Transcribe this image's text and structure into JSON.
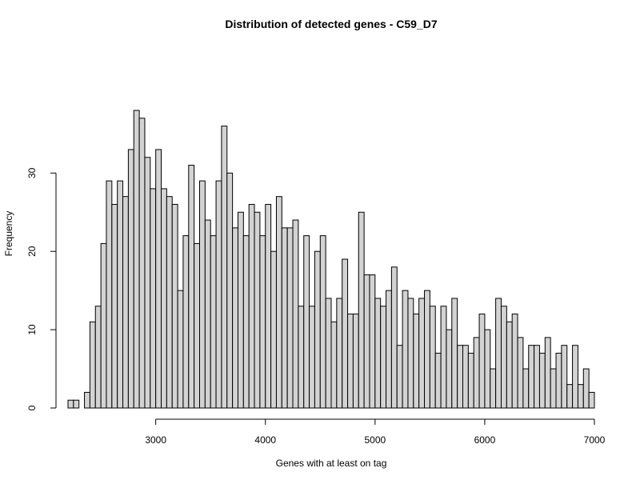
{
  "chart_data": {
    "type": "bar",
    "title": "Distribution of detected genes - C59_D7",
    "xlabel": "Genes with at least on tag",
    "ylabel": "Frequency",
    "bin_start": 2200,
    "bin_width": 50,
    "values": [
      1,
      1,
      0,
      2,
      11,
      13,
      21,
      29,
      26,
      29,
      27,
      33,
      38,
      37,
      32,
      28,
      33,
      28,
      27,
      26,
      15,
      22,
      31,
      21,
      29,
      24,
      22,
      29,
      36,
      30,
      23,
      25,
      22,
      26,
      25,
      22,
      26,
      20,
      27,
      23,
      23,
      24,
      13,
      22,
      13,
      20,
      22,
      14,
      11,
      14,
      19,
      12,
      12,
      25,
      17,
      17,
      14,
      13,
      15,
      18,
      8,
      15,
      14,
      12,
      14,
      15,
      13,
      7,
      13,
      10,
      14,
      8,
      8,
      7,
      9,
      12,
      10,
      5,
      14,
      13,
      11,
      12,
      9,
      5,
      8,
      8,
      7,
      9,
      5,
      7,
      8,
      3,
      8,
      3,
      5,
      2
    ],
    "xlim": [
      2200,
      7000
    ],
    "ylim": [
      0,
      38
    ],
    "xticks": [
      3000,
      4000,
      5000,
      6000,
      7000
    ],
    "yticks": [
      0,
      10,
      20,
      30
    ],
    "grid": false
  }
}
